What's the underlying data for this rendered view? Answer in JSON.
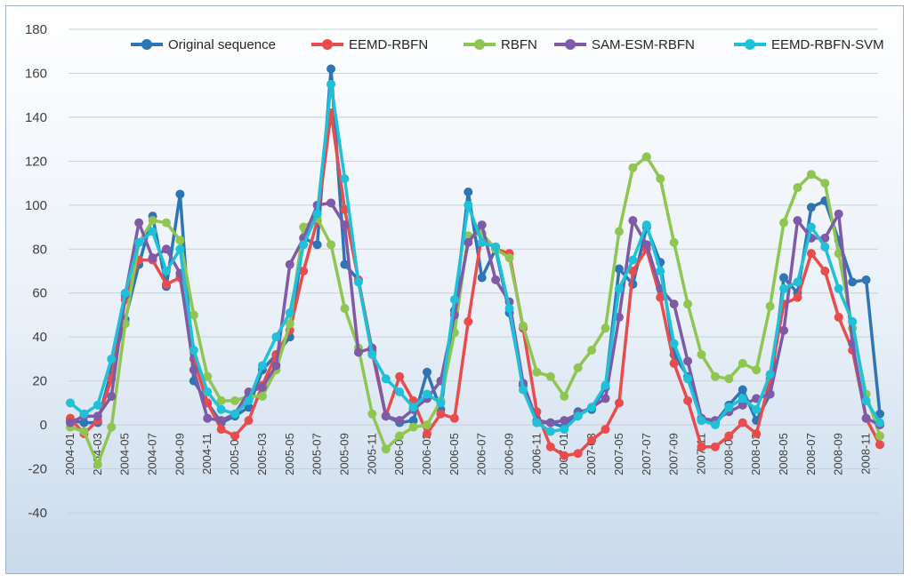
{
  "chart_data": {
    "type": "line",
    "title": "",
    "xlabel": "",
    "ylabel": "",
    "ylim": [
      -40,
      180
    ],
    "yticks": [
      -40,
      -20,
      0,
      20,
      40,
      60,
      80,
      100,
      120,
      140,
      160,
      180
    ],
    "grid": true,
    "legend_position": "top",
    "x": [
      "2004-01",
      "2004-02",
      "2004-03",
      "2004-04",
      "2004-05",
      "2004-06",
      "2004-07",
      "2004-08",
      "2004-09",
      "2004-10",
      "2004-11",
      "2004-12",
      "2005-01",
      "2005-02",
      "2005-03",
      "2005-04",
      "2005-05",
      "2005-06",
      "2005-07",
      "2005-08",
      "2005-09",
      "2005-10",
      "2005-11",
      "2005-12",
      "2006-01",
      "2006-02",
      "2006-03",
      "2006-04",
      "2006-05",
      "2006-06",
      "2006-07",
      "2006-08",
      "2006-09",
      "2006-10",
      "2006-11",
      "2006-12",
      "2007-01",
      "2007-02",
      "2007-03",
      "2007-04",
      "2007-05",
      "2007-06",
      "2007-07",
      "2007-08",
      "2007-09",
      "2007-10",
      "2007-11",
      "2007-12",
      "2008-01",
      "2008-02",
      "2008-03",
      "2008-04",
      "2008-05",
      "2008-06",
      "2008-07",
      "2008-08",
      "2008-09",
      "2008-10",
      "2008-11",
      "2008-12"
    ],
    "x_tick_labels": [
      "2004-01",
      "2004-03",
      "2004-05",
      "2004-07",
      "2004-09",
      "2004-11",
      "2005-01",
      "2005-03",
      "2005-05",
      "2005-07",
      "2005-09",
      "2005-11",
      "2006-01",
      "2006-03",
      "2006-05",
      "2006-07",
      "2006-09",
      "2006-11",
      "2007-01",
      "2007-03",
      "2007-05",
      "2007-07",
      "2007-09",
      "2007-11",
      "2008-01",
      "2008-03",
      "2008-05",
      "2008-07",
      "2008-09",
      "2008-11"
    ],
    "series": [
      {
        "name": "Original sequence",
        "color": "#2e75b6",
        "values": [
          2,
          1,
          1,
          25,
          48,
          73,
          95,
          63,
          105,
          20,
          10,
          1,
          4,
          8,
          25,
          32,
          40,
          85,
          82,
          162,
          73,
          66,
          34,
          4,
          1,
          2,
          24,
          7,
          52,
          106,
          67,
          80,
          51,
          18,
          1,
          1,
          -1,
          6,
          7,
          17,
          71,
          64,
          90,
          74,
          32,
          22,
          2,
          1,
          9,
          16,
          2,
          14,
          67,
          60,
          99,
          102,
          84,
          65,
          66,
          5
        ]
      },
      {
        "name": "EEMD-RBFN",
        "color": "#e84c4c",
        "values": [
          3,
          -4,
          2,
          21,
          57,
          75,
          75,
          64,
          67,
          30,
          10,
          -2,
          -5,
          2,
          18,
          32,
          43,
          70,
          93,
          142,
          98,
          66,
          33,
          4,
          22,
          11,
          -4,
          5,
          3,
          47,
          87,
          80,
          78,
          44,
          6,
          -10,
          -14,
          -13,
          -7,
          -2,
          10,
          70,
          80,
          58,
          28,
          11,
          -10,
          -10,
          -5,
          1,
          -4,
          21,
          55,
          58,
          78,
          70,
          49,
          34,
          3,
          -9
        ]
      },
      {
        "name": "RBFN",
        "color": "#8fc652",
        "values": [
          -1,
          -3,
          -18,
          -1,
          46,
          83,
          93,
          92,
          84,
          50,
          22,
          11,
          11,
          13,
          13,
          25,
          46,
          90,
          94,
          82,
          53,
          35,
          5,
          -11,
          -5,
          -1,
          0,
          11,
          42,
          86,
          87,
          80,
          76,
          45,
          24,
          22,
          13,
          26,
          34,
          44,
          88,
          117,
          122,
          112,
          83,
          55,
          32,
          22,
          21,
          28,
          25,
          54,
          92,
          108,
          114,
          110,
          78,
          44,
          14,
          -5
        ]
      },
      {
        "name": "SAM-ESM-RBFN",
        "color": "#7f5aa6",
        "values": [
          1,
          4,
          4,
          13,
          59,
          92,
          76,
          80,
          69,
          25,
          3,
          2,
          5,
          15,
          17,
          27,
          73,
          85,
          100,
          101,
          91,
          33,
          35,
          4,
          2,
          7,
          12,
          20,
          50,
          83,
          91,
          66,
          56,
          19,
          2,
          1,
          2,
          5,
          8,
          12,
          49,
          93,
          82,
          62,
          55,
          29,
          3,
          2,
          6,
          9,
          12,
          14,
          43,
          93,
          85,
          85,
          96,
          37,
          3,
          0
        ]
      },
      {
        "name": "EEMD-RBFN-SVM",
        "color": "#1ec1d8",
        "values": [
          10,
          5,
          9,
          30,
          60,
          83,
          88,
          70,
          80,
          34,
          15,
          7,
          5,
          11,
          27,
          40,
          51,
          82,
          96,
          155,
          112,
          65,
          32,
          21,
          15,
          8,
          14,
          10,
          57,
          100,
          83,
          81,
          53,
          16,
          1,
          -3,
          -2,
          4,
          8,
          18,
          62,
          75,
          91,
          70,
          37,
          21,
          2,
          0,
          8,
          12,
          7,
          23,
          62,
          65,
          90,
          81,
          62,
          47,
          11,
          1
        ]
      }
    ]
  }
}
